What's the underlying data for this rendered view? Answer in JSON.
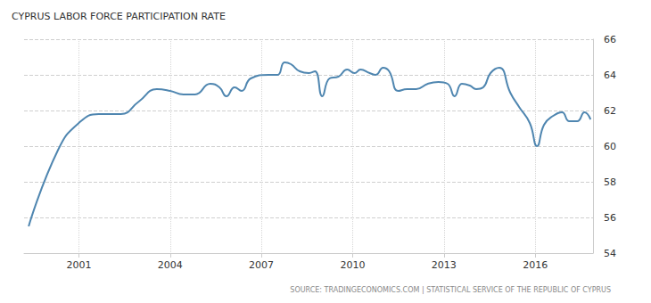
{
  "chart_data": {
    "type": "line",
    "title": "CYPRUS LABOR FORCE PARTICIPATION RATE",
    "source": "SOURCE: TRADINGECONOMICS.COM | STATISTICAL SERVICE OF THE REPUBLIC OF CYPRUS",
    "x": [
      1999.35,
      2000.32,
      2001.0,
      2001.65,
      2002.38,
      2002.97,
      2003.56,
      2004.0,
      2004.44,
      2004.82,
      2005.32,
      2005.62,
      2005.85,
      2006.12,
      2006.35,
      2006.65,
      2007.24,
      2007.53,
      2007.76,
      2007.97,
      2008.26,
      2008.56,
      2008.76,
      2009.0,
      2009.24,
      2009.53,
      2009.82,
      2010.06,
      2010.26,
      2010.56,
      2010.76,
      2011.0,
      2011.2,
      2011.5,
      2011.79,
      2012.09,
      2012.47,
      2012.82,
      2013.12,
      2013.35,
      2013.59,
      2013.85,
      2014.06,
      2014.29,
      2014.53,
      2014.82,
      2015.18,
      2015.47,
      2015.82,
      2016.06,
      2016.29,
      2016.59,
      2016.88,
      2017.12,
      2017.38,
      2017.62,
      2017.82
    ],
    "values": [
      55.5,
      59.8,
      61.3,
      61.8,
      61.8,
      62.5,
      63.2,
      63.1,
      62.9,
      62.9,
      63.5,
      63.3,
      62.8,
      63.3,
      63.1,
      63.8,
      64.0,
      64.0,
      64.7,
      64.6,
      64.2,
      64.1,
      64.2,
      62.8,
      63.8,
      63.9,
      64.3,
      64.1,
      64.3,
      64.1,
      64.0,
      64.4,
      64.2,
      63.1,
      63.2,
      63.2,
      63.5,
      63.6,
      63.5,
      62.8,
      63.5,
      63.4,
      63.2,
      63.3,
      64.1,
      64.4,
      63.0,
      62.2,
      61.3,
      60.0,
      61.2,
      61.7,
      61.9,
      61.4,
      61.4,
      61.9,
      61.5
    ],
    "color": "#4f86b0",
    "xlim": [
      1999.2,
      2017.9
    ],
    "xticks": [
      2001,
      2004,
      2007,
      2010,
      2013,
      2016
    ],
    "ylim": [
      54,
      66
    ],
    "yticks": [
      54,
      56,
      58,
      60,
      62,
      64,
      66
    ],
    "grid": true
  }
}
